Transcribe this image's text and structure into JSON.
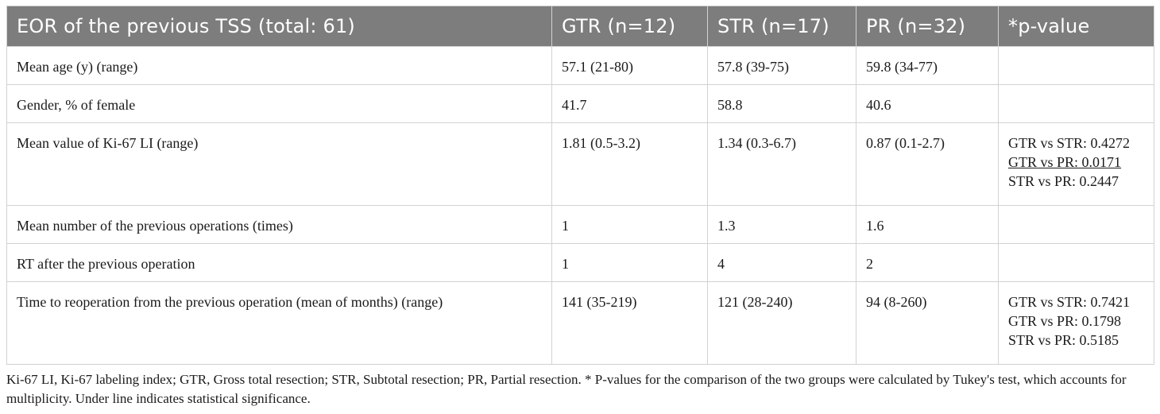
{
  "headers": [
    "EOR of the previous TSS (total: 61)",
    "GTR (n=12)",
    "STR (n=17)",
    "PR (n=32)",
    "*p-value"
  ],
  "rows": [
    {
      "label": "Mean age (y) (range)",
      "gtr": "57.1 (21-80)",
      "str": "57.8 (39-75)",
      "pr": "59.8 (34-77)",
      "pvalues": []
    },
    {
      "label": "Gender, % of female",
      "gtr": "41.7",
      "str": "58.8",
      "pr": "40.6",
      "pvalues": []
    },
    {
      "label": "Mean value of Ki-67 LI (range)",
      "gtr": "1.81 (0.5-3.2)",
      "str": "1.34 (0.3-6.7)",
      "pr": "0.87 (0.1-2.7)",
      "pvalues": [
        {
          "text": "GTR vs STR: 0.4272",
          "significant": false
        },
        {
          "text": "GTR vs PR: 0.0171",
          "significant": true
        },
        {
          "text": "STR vs PR: 0.2447",
          "significant": false
        }
      ]
    },
    {
      "label": "Mean number of the previous operations (times)",
      "gtr": "1",
      "str": "1.3",
      "pr": "1.6",
      "pvalues": []
    },
    {
      "label": "RT after the previous operation",
      "gtr": "1",
      "str": "4",
      "pr": "2",
      "pvalues": []
    },
    {
      "label": "Time to reoperation from the previous operation (mean of months) (range)",
      "gtr": "141 (35-219)",
      "str": "121 (28-240)",
      "pr": "94 (8-260)",
      "pvalues": [
        {
          "text": "GTR vs STR: 0.7421",
          "significant": false
        },
        {
          "text": "GTR vs PR: 0.1798",
          "significant": false
        },
        {
          "text": "STR vs PR: 0.5185",
          "significant": false
        }
      ]
    }
  ],
  "footnote": "Ki-67 LI, Ki-67 labeling index; GTR, Gross total resection; STR, Subtotal resection; PR, Partial resection. * P-values for the comparison of the two groups were calculated by Tukey's test, which accounts for multiplicity. Under line indicates statistical significance.",
  "colors": {
    "header_bg": "#7d7d7d",
    "header_text": "#ffffff",
    "border": "#d2d2d2"
  }
}
